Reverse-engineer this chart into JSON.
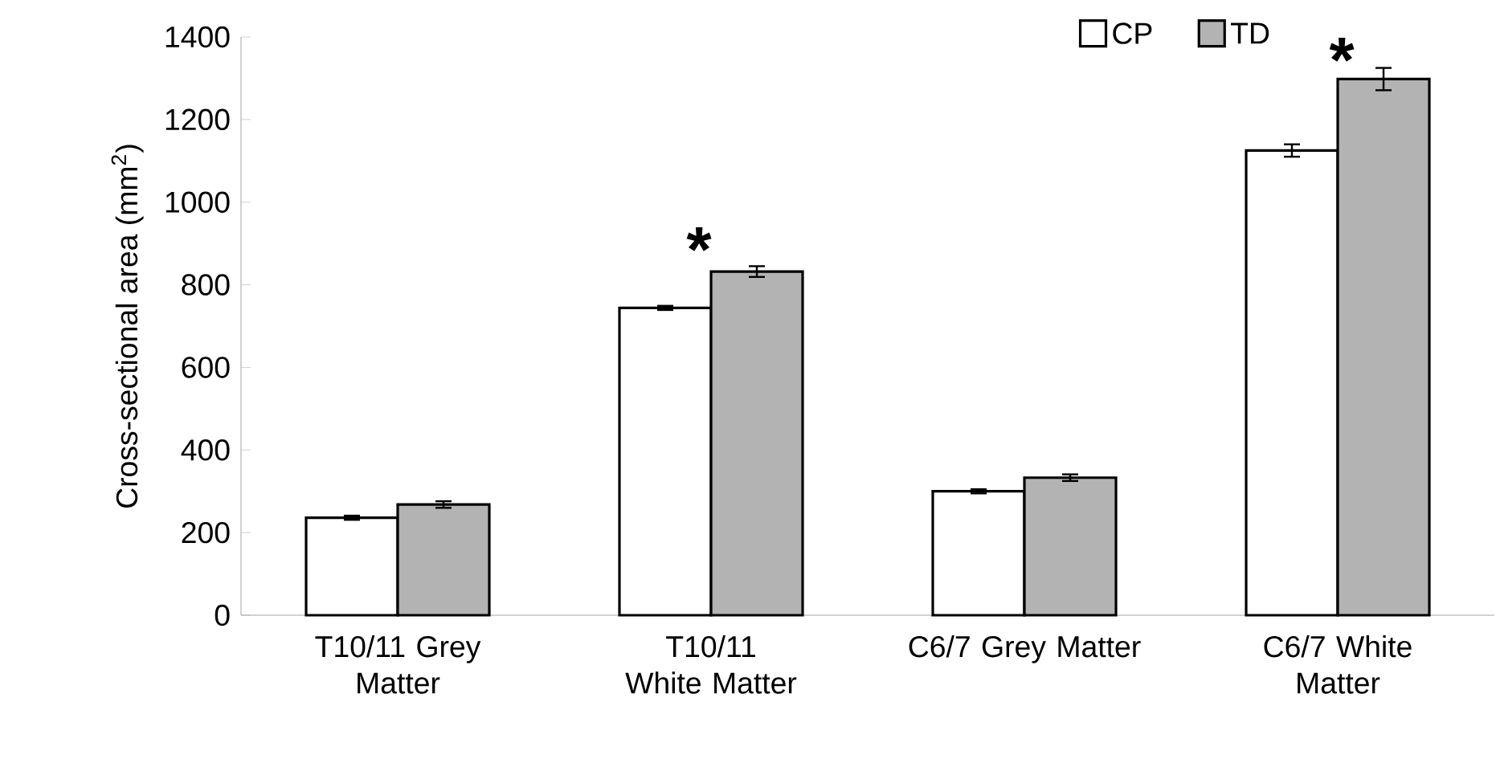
{
  "chart_data": {
    "type": "bar",
    "ylabel": "Cross-sectional area (mm$^{2}$)",
    "categories": [
      "T10/11 Grey Matter",
      "T10/11 White Matter",
      "C6/7 Grey Matter",
      "C6/7 White Matter"
    ],
    "series": [
      {
        "name": "CP",
        "color": "#ffffff",
        "values": [
          236,
          744,
          300,
          1125
        ],
        "errors": [
          5,
          5,
          5,
          15
        ]
      },
      {
        "name": "TD",
        "color": "#b3b3b3",
        "values": [
          268,
          832,
          333,
          1298
        ],
        "errors": [
          8,
          13,
          8,
          27
        ]
      }
    ],
    "ylim": [
      0,
      1400
    ],
    "yticks": [
      0,
      200,
      400,
      600,
      800,
      1000,
      1200,
      1400
    ],
    "annotations": [
      "*",
      "*"
    ],
    "legend": "top right",
    "grid": false
  }
}
